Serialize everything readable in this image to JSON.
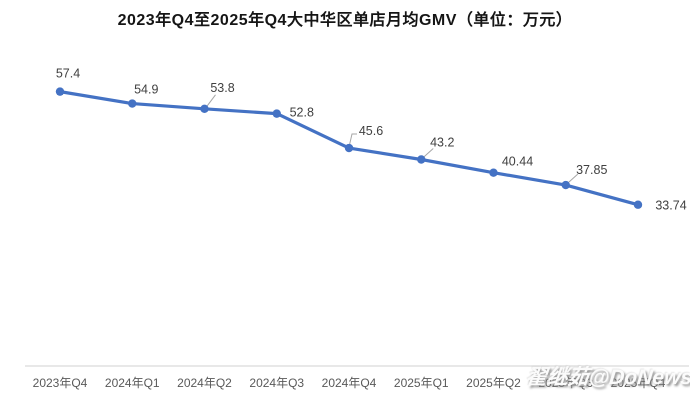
{
  "title": "2023年Q4至2025年Q4大中华区单店月均GMV（单位：万元）",
  "watermark": "翟继茹@DoNews",
  "colors": {
    "background": "#ffffff",
    "line": "#4472c4",
    "marker": "#4472c4",
    "data_label": "#404040",
    "axis_line": "#d9d9d9",
    "tick_label": "#595959",
    "leader_line": "#a6a6a6"
  },
  "chart_data": {
    "type": "line",
    "title": "2023年Q4至2025年Q4大中华区单店月均GMV（单位：万元）",
    "categories": [
      "2023年Q4",
      "2024年Q1",
      "2024年Q2",
      "2024年Q3",
      "2024年Q4",
      "2025年Q1",
      "2025年Q2",
      "2025年Q3",
      "2025年Q4"
    ],
    "values": [
      57.4,
      54.9,
      53.8,
      52.8,
      45.6,
      43.2,
      40.44,
      37.85,
      33.74
    ],
    "value_labels": [
      "57.4",
      "54.9",
      "53.8",
      "52.8",
      "45.6",
      "43.2",
      "40.44",
      "37.85",
      "33.74"
    ],
    "xlabel": "",
    "ylabel": "",
    "ylim": [
      0,
      70
    ],
    "grid": false,
    "legend": false,
    "marker": "circle"
  }
}
